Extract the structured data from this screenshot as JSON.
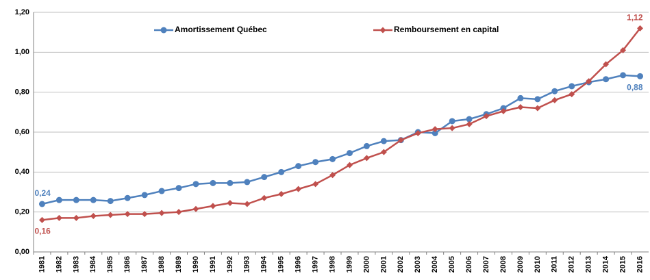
{
  "chart_data": {
    "type": "line",
    "categories": [
      "1981",
      "1982",
      "1983",
      "1984",
      "1985",
      "1986",
      "1987",
      "1988",
      "1989",
      "1990",
      "1991",
      "1992",
      "1993",
      "1994",
      "1995",
      "1996",
      "1997",
      "1998",
      "1999",
      "2000",
      "2001",
      "2002",
      "2003",
      "2004",
      "2005",
      "2006",
      "2007",
      "2008",
      "2009",
      "2010",
      "2011",
      "2012",
      "2013",
      "2014",
      "2015",
      "2016"
    ],
    "series": [
      {
        "name": "Amortissement Québec",
        "color": "#4f81bd",
        "marker": "circle",
        "values": [
          0.24,
          0.26,
          0.26,
          0.26,
          0.255,
          0.27,
          0.285,
          0.305,
          0.32,
          0.34,
          0.345,
          0.345,
          0.35,
          0.375,
          0.4,
          0.43,
          0.45,
          0.465,
          0.495,
          0.53,
          0.555,
          0.56,
          0.6,
          0.595,
          0.655,
          0.665,
          0.69,
          0.72,
          0.77,
          0.765,
          0.805,
          0.83,
          0.85,
          0.865,
          0.885,
          0.88
        ],
        "value_labels": [
          "0,24",
          null,
          null,
          null,
          null,
          null,
          null,
          null,
          null,
          null,
          null,
          null,
          null,
          null,
          null,
          null,
          null,
          null,
          null,
          null,
          null,
          null,
          null,
          null,
          null,
          null,
          null,
          null,
          null,
          null,
          null,
          null,
          null,
          null,
          null,
          "0,88"
        ]
      },
      {
        "name": "Remboursement en capital",
        "color": "#c0504d",
        "marker": "diamond",
        "values": [
          0.16,
          0.17,
          0.17,
          0.18,
          0.185,
          0.19,
          0.19,
          0.195,
          0.2,
          0.215,
          0.23,
          0.245,
          0.24,
          0.27,
          0.29,
          0.315,
          0.34,
          0.385,
          0.435,
          0.47,
          0.5,
          0.56,
          0.595,
          0.615,
          0.62,
          0.64,
          0.68,
          0.705,
          0.725,
          0.72,
          0.76,
          0.79,
          0.855,
          0.94,
          1.01,
          1.12
        ],
        "value_labels": [
          "0,16",
          null,
          null,
          null,
          null,
          null,
          null,
          null,
          null,
          null,
          null,
          null,
          null,
          null,
          null,
          null,
          null,
          null,
          null,
          null,
          null,
          null,
          null,
          null,
          null,
          null,
          null,
          null,
          null,
          null,
          null,
          null,
          null,
          null,
          null,
          "1,12"
        ]
      }
    ],
    "ylim": [
      0,
      1.2
    ],
    "yticks": [
      {
        "value": 0,
        "label": "0,00"
      },
      {
        "value": 0.2,
        "label": "0,20"
      },
      {
        "value": 0.4,
        "label": "0,40"
      },
      {
        "value": 0.6,
        "label": "0,60"
      },
      {
        "value": 0.8,
        "label": "0,80"
      },
      {
        "value": 1.0,
        "label": "1,00"
      },
      {
        "value": 1.2,
        "label": "1,20"
      }
    ],
    "grid": true,
    "legend": "top"
  }
}
